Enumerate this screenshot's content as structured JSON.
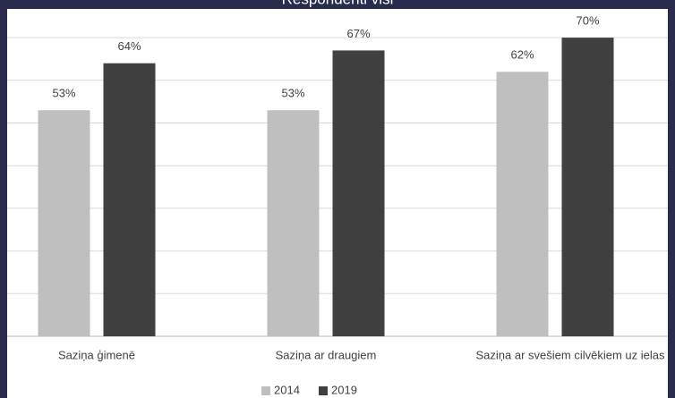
{
  "chart_data": {
    "type": "bar",
    "title": "Respondenti visi",
    "categories": [
      "Saziņa ģimenē",
      "Saziņa ar draugiem",
      "Saziņa ar svešiem cilvēkiem uz ielas"
    ],
    "series": [
      {
        "name": "2014",
        "color": "#bfbfbf",
        "values": [
          53,
          53,
          62
        ],
        "value_labels": [
          "53%",
          "53%",
          "62%"
        ]
      },
      {
        "name": "2019",
        "color": "#404040",
        "values": [
          64,
          67,
          70
        ],
        "value_labels": [
          "64%",
          "67%",
          "70%"
        ]
      }
    ],
    "ylim": [
      0,
      80
    ],
    "yticks": [
      0,
      10,
      20,
      30,
      40,
      50,
      60,
      70
    ],
    "grid": true,
    "legend": "bottom"
  }
}
